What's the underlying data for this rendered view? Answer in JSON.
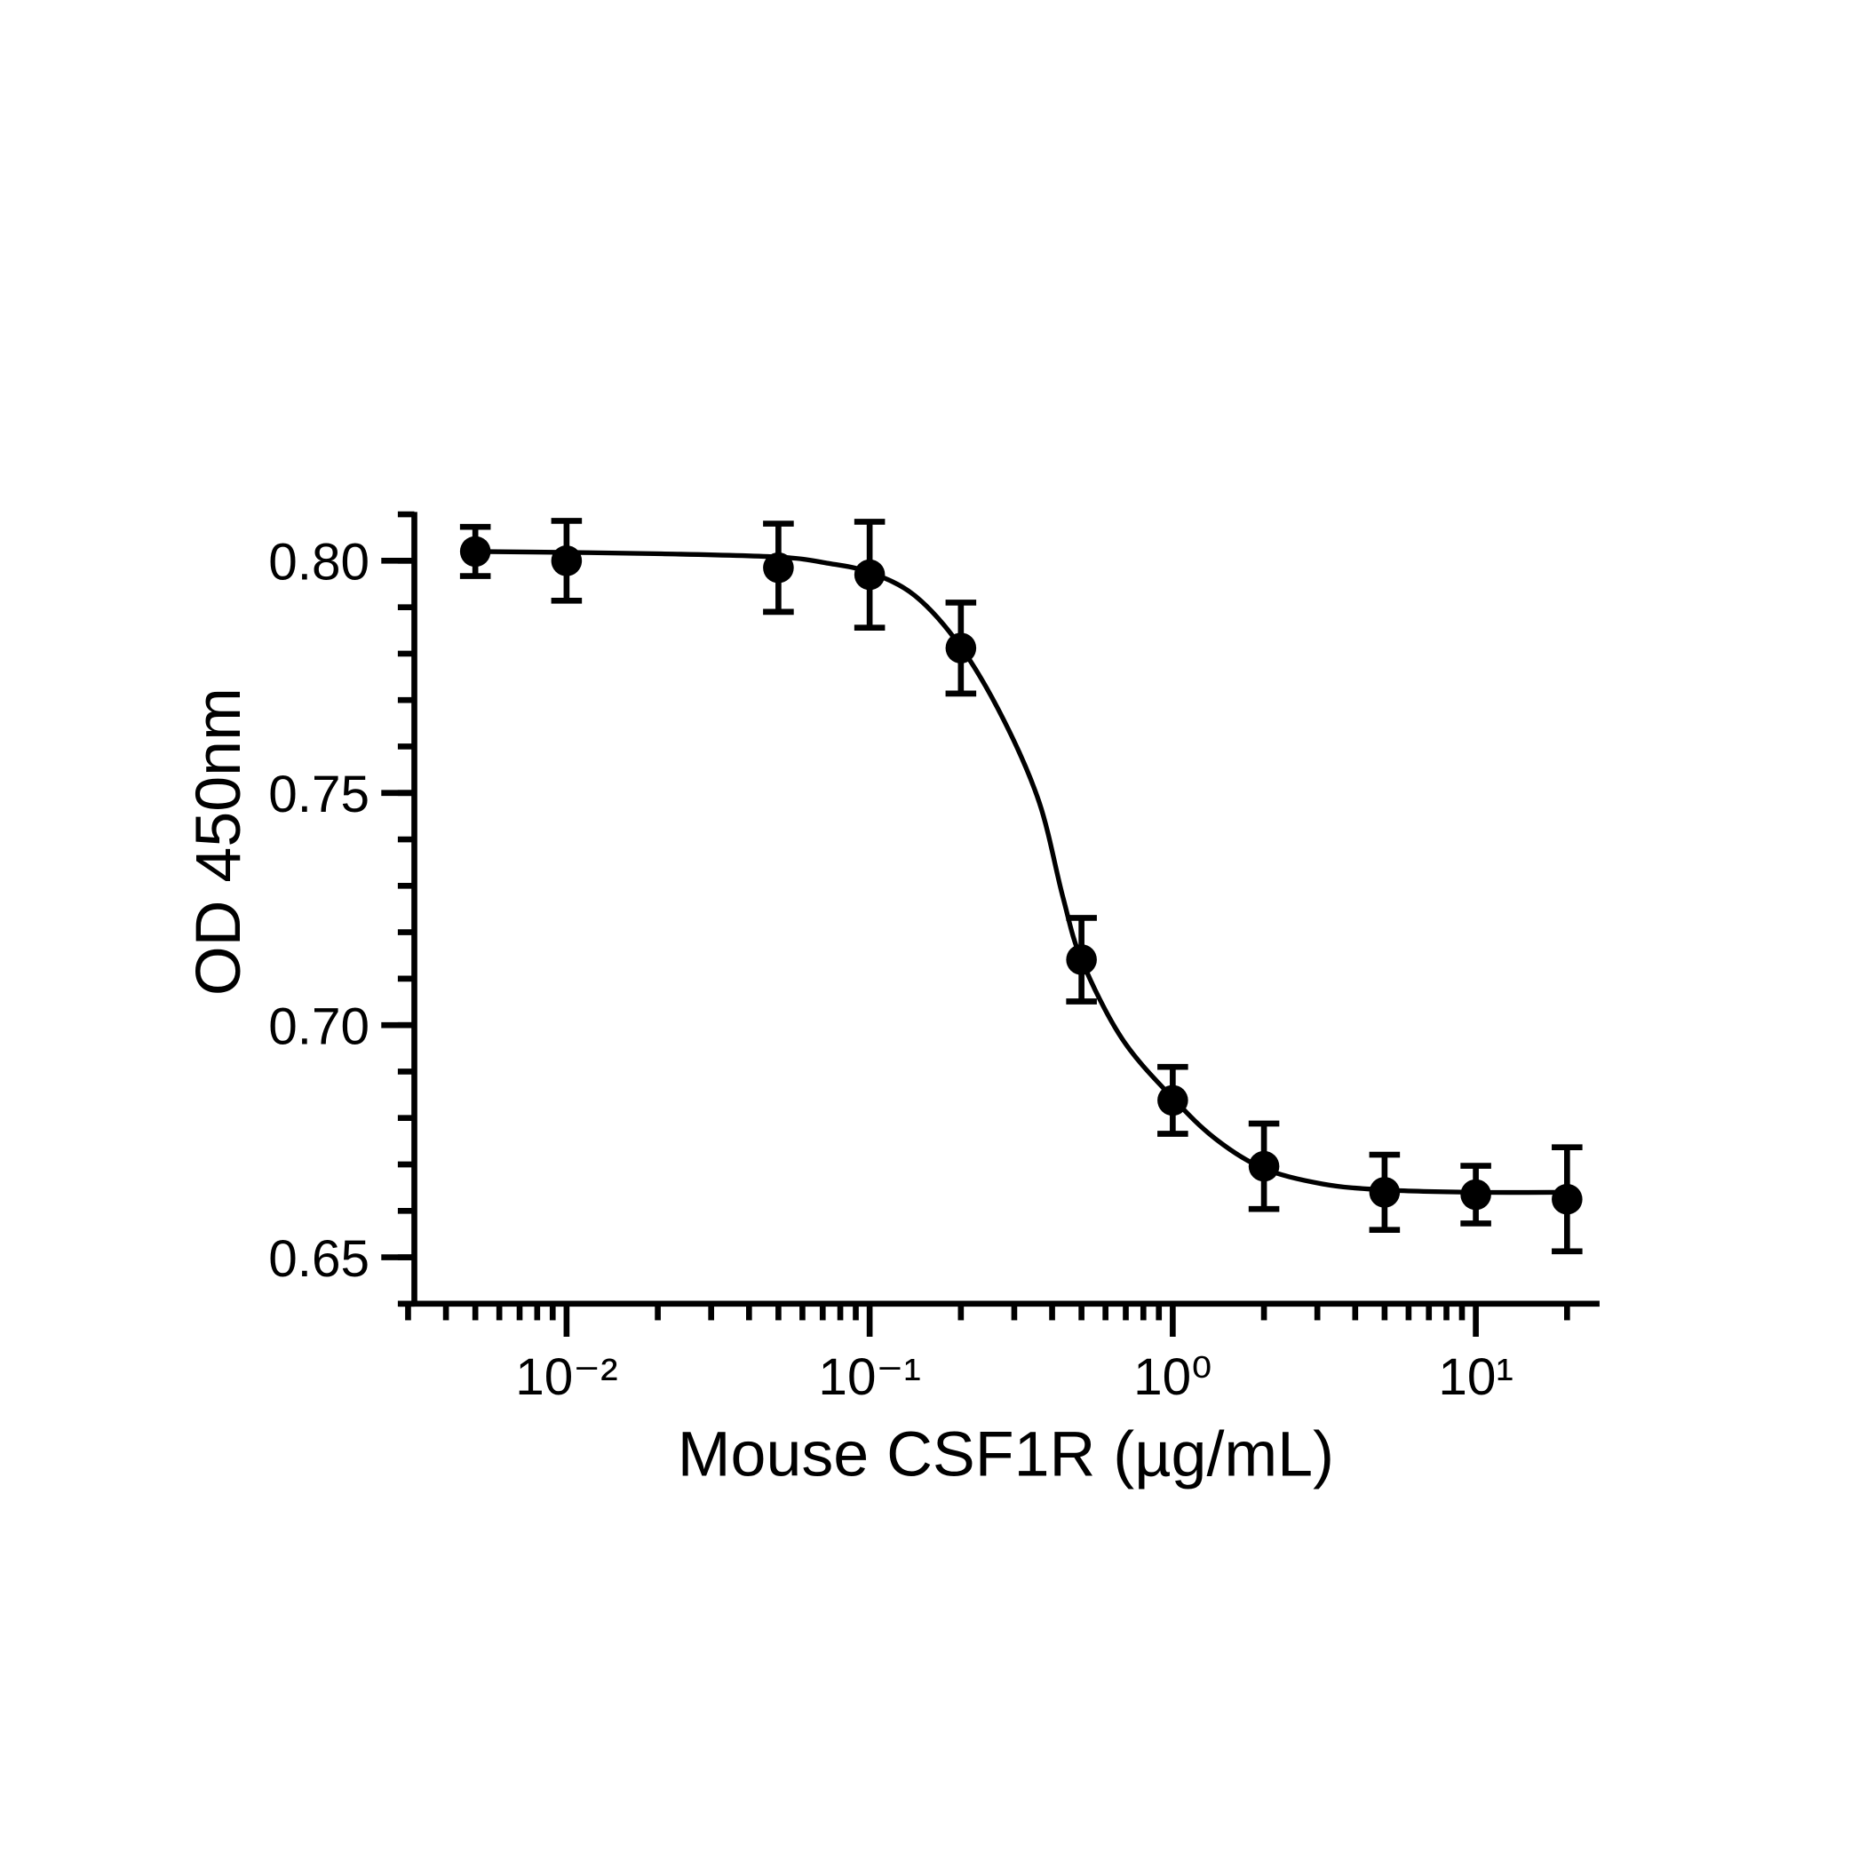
{
  "chart_data": {
    "type": "scatter",
    "x_label": "Mouse CSF1R (µg/mL)",
    "y_label": "OD 450nm",
    "x": [
      0.005,
      0.01,
      0.05,
      0.1,
      0.2,
      0.5,
      1,
      2,
      5,
      10,
      20
    ],
    "values": [
      0.802,
      0.8,
      0.7985,
      0.797,
      0.7812,
      0.7141,
      0.6838,
      0.6696,
      0.664,
      0.6635,
      0.6625
    ],
    "errors": [
      0.0053,
      0.0086,
      0.0095,
      0.0114,
      0.0098,
      0.009,
      0.0072,
      0.0092,
      0.0081,
      0.0062,
      0.0112
    ],
    "fit": {
      "x": [
        0.005,
        0.01,
        0.0206,
        0.05,
        0.0722,
        0.1,
        0.1415,
        0.2,
        0.277,
        0.363,
        0.434,
        0.5,
        0.68,
        1,
        1.39,
        2,
        3.12,
        5,
        10,
        20
      ],
      "values": [
        0.802,
        0.8018,
        0.8015,
        0.8008,
        0.7995,
        0.7975,
        0.7924,
        0.7814,
        0.7657,
        0.7479,
        0.7276,
        0.7141,
        0.6971,
        0.6843,
        0.6754,
        0.6691,
        0.6658,
        0.6645,
        0.664,
        0.664
      ]
    },
    "color": "#000000",
    "x_log": true,
    "xlim": [
      0.0028,
      25.6
    ],
    "xticks": [
      {
        "value": 0.01,
        "label": "10⁻²"
      },
      {
        "value": 0.1,
        "label": "10⁻¹"
      },
      {
        "value": 1,
        "label": "10⁰"
      },
      {
        "value": 10,
        "label": "10¹"
      }
    ],
    "ylim": [
      0.64,
      0.81
    ],
    "yticks": [
      0.65,
      {
        "value": 0.7,
        "label": "0.70"
      },
      0.75,
      {
        "value": 0.8,
        "label": "0.80"
      }
    ],
    "grid": false
  }
}
